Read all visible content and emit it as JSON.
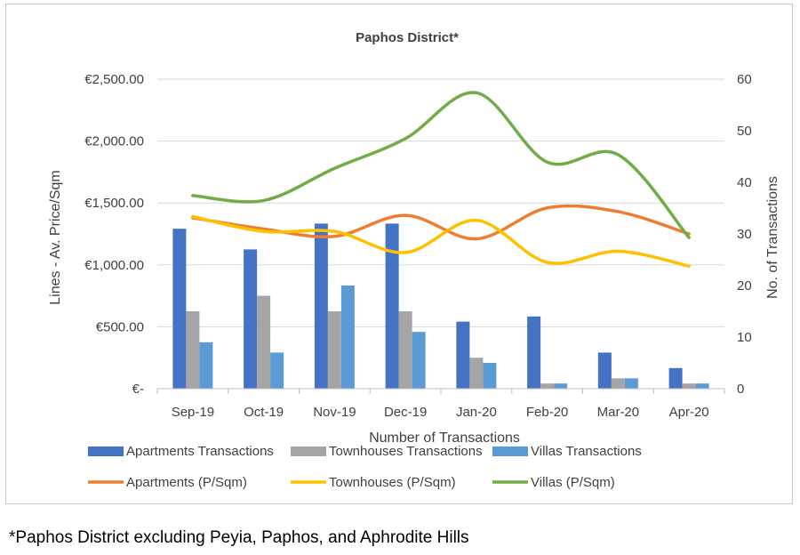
{
  "chart_data": {
    "type": "bar",
    "title": "Paphos District*",
    "xlabel": "Number of Transactions",
    "ylabel": "Lines - Av. Price/Sqm",
    "y2label": "No. of Transactions",
    "categories": [
      "Sep-19",
      "Oct-19",
      "Nov-19",
      "Dec-19",
      "Jan-20",
      "Feb-20",
      "Mar-20",
      "Apr-20"
    ],
    "y_left": {
      "min": 0,
      "max": 2500,
      "ticks": [
        0,
        500,
        1000,
        1500,
        2000,
        2500
      ],
      "tick_labels": [
        "€-",
        "€500.00",
        "€1,000.00",
        "€1,500.00",
        "€2,000.00",
        "€2,500.00"
      ]
    },
    "y_right": {
      "min": 0,
      "max": 60,
      "ticks": [
        0,
        10,
        20,
        30,
        40,
        50,
        60
      ],
      "tick_labels": [
        "0",
        "10",
        "20",
        "30",
        "40",
        "50",
        "60"
      ]
    },
    "bar_series": [
      {
        "name": "Apartments Transactions",
        "color": "#4472c4",
        "values": [
          31,
          27,
          32,
          32,
          13,
          14,
          7,
          4
        ]
      },
      {
        "name": "Townhouses Transactions",
        "color": "#a5a5a5",
        "values": [
          15,
          18,
          15,
          15,
          6,
          1,
          2,
          1
        ]
      },
      {
        "name": "Villas Transactions",
        "color": "#5b9bd5",
        "values": [
          9,
          7,
          20,
          11,
          5,
          1,
          2,
          1
        ]
      }
    ],
    "line_series": [
      {
        "name": "Apartments (P/Sqm)",
        "color": "#ed7d31",
        "values": [
          1380,
          1290,
          1230,
          1400,
          1210,
          1460,
          1430,
          1250
        ]
      },
      {
        "name": "Townhouses (P/Sqm)",
        "color": "#ffc000",
        "values": [
          1390,
          1270,
          1270,
          1100,
          1360,
          1020,
          1110,
          990
        ]
      },
      {
        "name": "Villas (P/Sqm)",
        "color": "#70ad47",
        "values": [
          1560,
          1520,
          1780,
          2020,
          2390,
          1830,
          1890,
          1220
        ]
      }
    ],
    "grid": "horizontal",
    "legend": "bottom"
  },
  "footnote": "*Paphos District excluding Peyia, Paphos, and Aphrodite Hills"
}
